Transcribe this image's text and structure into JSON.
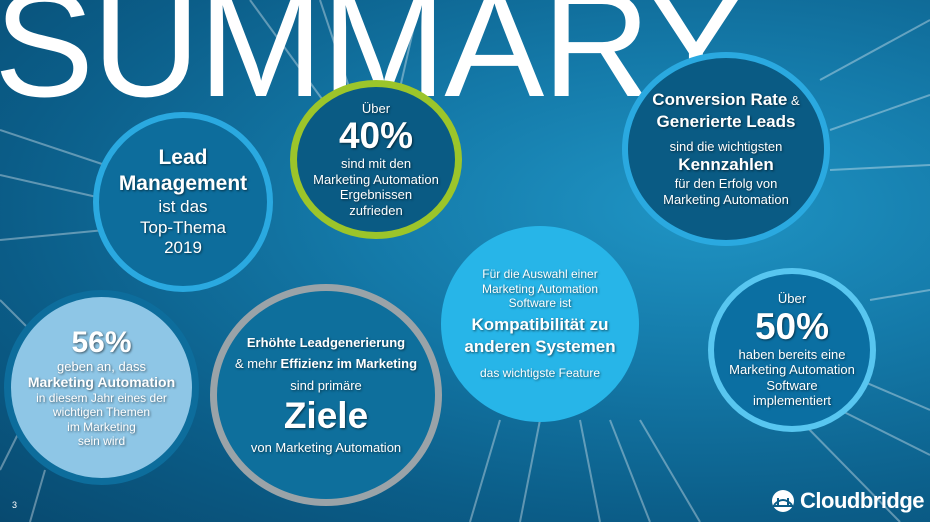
{
  "title": "SUMMARY",
  "page_number": "3",
  "logo_text": "Cloudbridge",
  "bubbles": {
    "lead": {
      "line1": "Lead",
      "line2": "Management",
      "line3": "ist das",
      "line4": "Top-Thema",
      "line5": "2019"
    },
    "forty": {
      "intro": "Über",
      "value": "40%",
      "line1": "sind mit den",
      "line2": "Marketing Automation",
      "line3": "Ergebnissen",
      "line4": "zufrieden"
    },
    "conversion": {
      "title_part1": "Conversion Rate",
      "title_amp": " &",
      "title_part2": "Generierte Leads",
      "line1": "sind die wichtigsten",
      "highlight": "Kennzahlen",
      "line2": "für den Erfolg von",
      "line3": "Marketing Automation"
    },
    "fiftysix": {
      "value": "56%",
      "line1": "geben an, dass",
      "highlight": "Marketing Automation",
      "line2": "in diesem Jahr eines der",
      "line3": "wichtigen Themen",
      "line4": "im Marketing",
      "line5": "sein wird"
    },
    "ziele": {
      "line1": "Erhöhte Leadgenerierung",
      "line2_prefix": "& mehr ",
      "line2_bold": "Effizienz im Marketing",
      "line3": "sind primäre",
      "highlight": "Ziele",
      "line4": "von Marketing Automation"
    },
    "kompat": {
      "line1": "Für die Auswahl einer",
      "line2": "Marketing Automation",
      "line3": "Software ist",
      "highlight1": "Kompatibilität zu",
      "highlight2": "anderen Systemen",
      "line4": "das wichtigste Feature"
    },
    "fifty": {
      "intro": "Über",
      "value": "50%",
      "line1": "haben bereits eine",
      "line2": "Marketing Automation",
      "line3": "Software",
      "line4": "implementiert"
    }
  }
}
